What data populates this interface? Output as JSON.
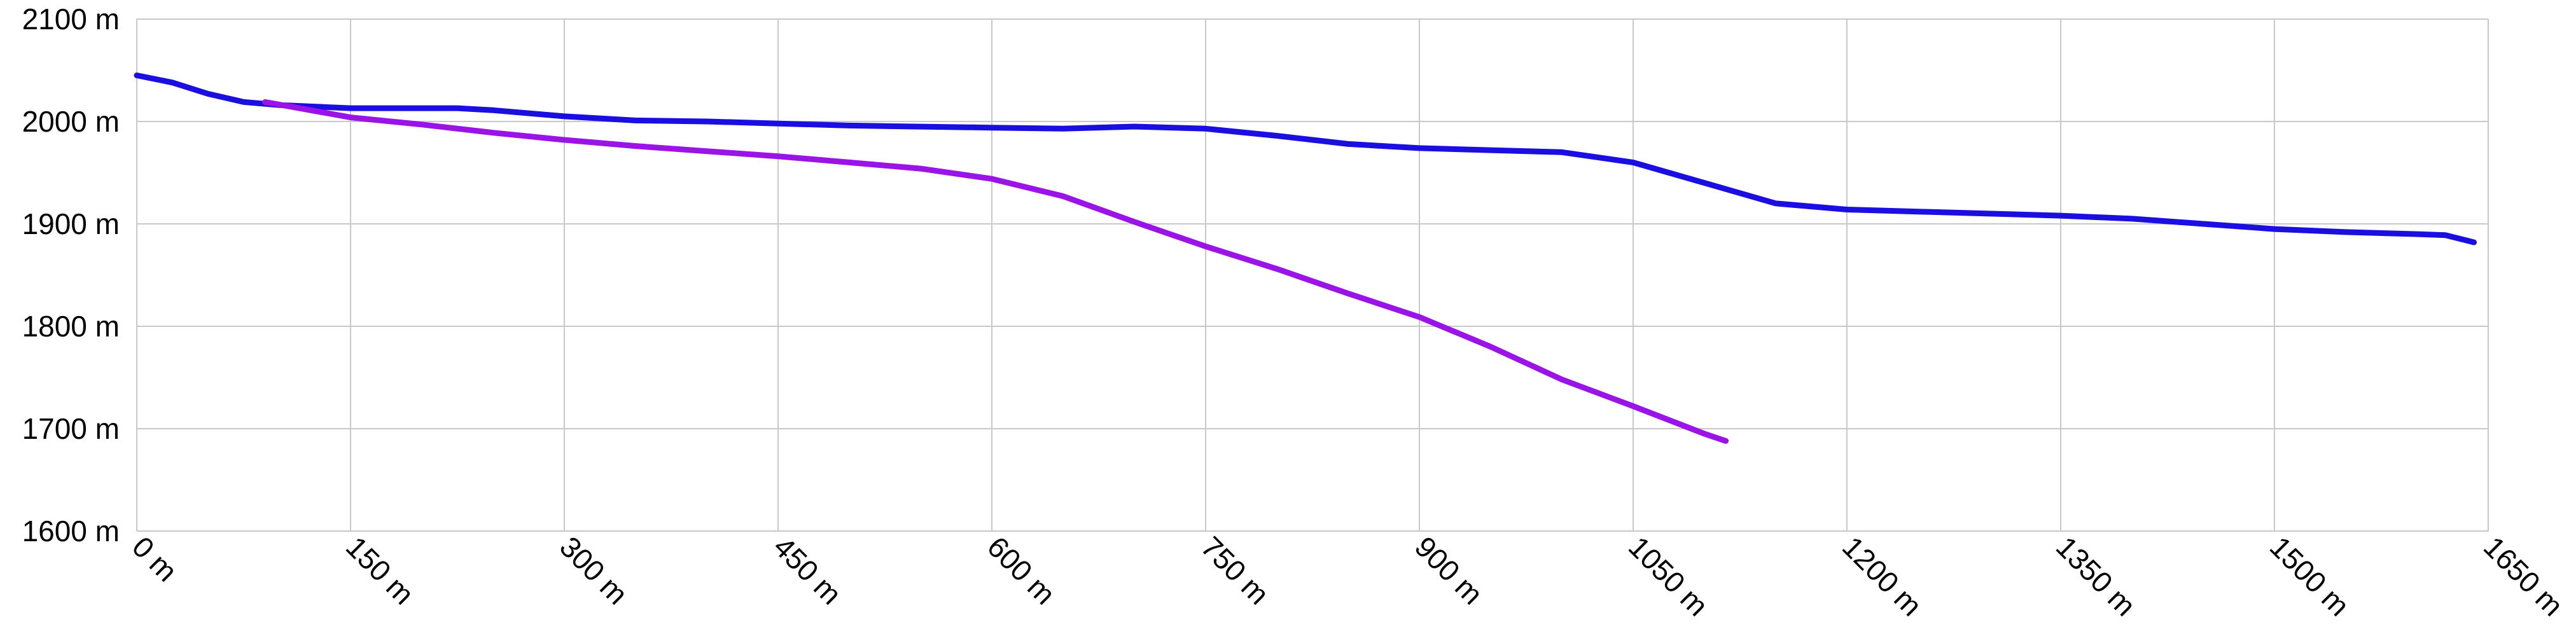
{
  "chart_data": {
    "type": "line",
    "title": "",
    "xlabel": "",
    "ylabel": "",
    "xlim": [
      0,
      1650
    ],
    "ylim": [
      1600,
      2100
    ],
    "grid": true,
    "x_ticks": [
      {
        "value": 0,
        "label": "0 m"
      },
      {
        "value": 150,
        "label": "150 m"
      },
      {
        "value": 300,
        "label": "300 m"
      },
      {
        "value": 450,
        "label": "450 m"
      },
      {
        "value": 600,
        "label": "600 m"
      },
      {
        "value": 750,
        "label": "750 m"
      },
      {
        "value": 900,
        "label": "900 m"
      },
      {
        "value": 1050,
        "label": "1050 m"
      },
      {
        "value": 1200,
        "label": "1200 m"
      },
      {
        "value": 1350,
        "label": "1350 m"
      },
      {
        "value": 1500,
        "label": "1500 m"
      },
      {
        "value": 1650,
        "label": "1650 m"
      }
    ],
    "y_ticks": [
      {
        "value": 1600,
        "label": "1600 m"
      },
      {
        "value": 1700,
        "label": "1700 m"
      },
      {
        "value": 1800,
        "label": "1800 m"
      },
      {
        "value": 1900,
        "label": "1900 m"
      },
      {
        "value": 2000,
        "label": "2000 m"
      },
      {
        "value": 2100,
        "label": "2100 m"
      }
    ],
    "series": [
      {
        "color": "#1a0fe0",
        "points": [
          [
            0,
            2045
          ],
          [
            25,
            2038
          ],
          [
            50,
            2027
          ],
          [
            75,
            2019
          ],
          [
            100,
            2016
          ],
          [
            150,
            2013
          ],
          [
            200,
            2013
          ],
          [
            225,
            2013
          ],
          [
            250,
            2011
          ],
          [
            300,
            2005
          ],
          [
            350,
            2001
          ],
          [
            400,
            2000
          ],
          [
            450,
            1998
          ],
          [
            500,
            1996
          ],
          [
            600,
            1994
          ],
          [
            650,
            1993
          ],
          [
            700,
            1995
          ],
          [
            750,
            1993
          ],
          [
            800,
            1986
          ],
          [
            850,
            1978
          ],
          [
            900,
            1974
          ],
          [
            950,
            1972
          ],
          [
            1000,
            1970
          ],
          [
            1050,
            1960
          ],
          [
            1100,
            1940
          ],
          [
            1150,
            1920
          ],
          [
            1200,
            1914
          ],
          [
            1250,
            1912
          ],
          [
            1300,
            1910
          ],
          [
            1350,
            1908
          ],
          [
            1400,
            1905
          ],
          [
            1450,
            1900
          ],
          [
            1500,
            1895
          ],
          [
            1550,
            1892
          ],
          [
            1600,
            1890
          ],
          [
            1620,
            1889
          ],
          [
            1640,
            1882
          ]
        ]
      },
      {
        "color": "#9a14e8",
        "points": [
          [
            90,
            2019
          ],
          [
            150,
            2004
          ],
          [
            200,
            1997
          ],
          [
            250,
            1989
          ],
          [
            300,
            1982
          ],
          [
            350,
            1976
          ],
          [
            400,
            1971
          ],
          [
            450,
            1966
          ],
          [
            500,
            1960
          ],
          [
            550,
            1954
          ],
          [
            600,
            1944
          ],
          [
            650,
            1927
          ],
          [
            700,
            1902
          ],
          [
            750,
            1878
          ],
          [
            800,
            1856
          ],
          [
            850,
            1832
          ],
          [
            900,
            1809
          ],
          [
            950,
            1780
          ],
          [
            1000,
            1748
          ],
          [
            1050,
            1722
          ],
          [
            1100,
            1695
          ],
          [
            1115,
            1688
          ]
        ]
      }
    ]
  }
}
